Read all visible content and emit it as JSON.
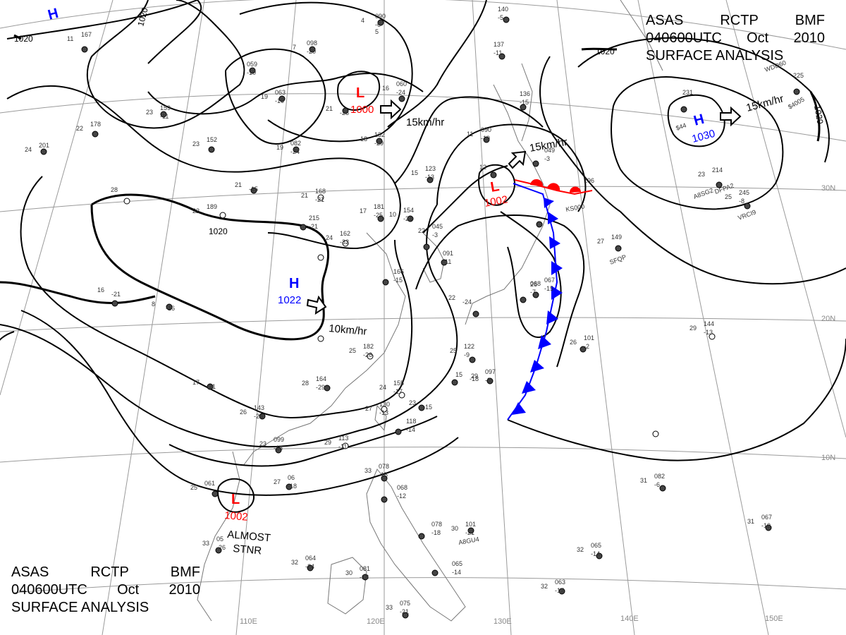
{
  "header": {
    "line1": [
      "ASAS",
      "RCTP",
      "BMF"
    ],
    "line2": [
      "040600UTC",
      "Oct",
      "2010"
    ],
    "line3": "SURFACE ANALYSIS"
  },
  "footer": {
    "line1": [
      "ASAS",
      "RCTP",
      "BMF"
    ],
    "line2": [
      "040600UTC",
      "Oct",
      "2010"
    ],
    "line3": "SURFACE ANALYSIS"
  },
  "colors": {
    "low": "#ff0000",
    "high": "#0000ff",
    "warm_front": "#ff0000",
    "cold_front": "#0000ff",
    "isobar": "#000000",
    "grid": "#888888"
  },
  "pressure_systems": [
    {
      "type": "H",
      "value": "",
      "color_key": "high"
    },
    {
      "type": "L",
      "value": "1000",
      "color_key": "low",
      "motion": "15km/hr"
    },
    {
      "type": "L",
      "value": "1002",
      "color_key": "low",
      "motion": "15km/hr"
    },
    {
      "type": "H",
      "value": "1030",
      "color_key": "high",
      "motion": "15km/hr"
    },
    {
      "type": "H",
      "value": "1022",
      "color_key": "high",
      "motion": "10km/hr"
    },
    {
      "type": "L",
      "value": "1002",
      "color_key": "low",
      "note": "ALMOST STNR"
    }
  ],
  "isobar_labels": [
    "1020",
    "1020",
    "1020",
    "1020"
  ],
  "longitude_labels": [
    "110E",
    "120E",
    "130E",
    "140E",
    "150E"
  ],
  "latitude_labels": [
    "30N",
    "20N",
    "10N"
  ],
  "stations": [
    {
      "id": "st1",
      "temp": "4",
      "pres": "090",
      "dp": "-6",
      "tend": "5"
    },
    {
      "id": "st2",
      "temp": "7",
      "pres": "098",
      "dp": "-20"
    },
    {
      "id": "st3",
      "temp": "",
      "pres": "059",
      "dp": "-10"
    },
    {
      "id": "st4",
      "temp": "19",
      "pres": "063",
      "dp": "-10"
    },
    {
      "id": "st5",
      "temp": "21",
      "pres": "",
      "dp": "-26"
    },
    {
      "id": "st6",
      "temp": "16",
      "pres": "060",
      "dp": "-24"
    },
    {
      "id": "st7",
      "temp": "11",
      "pres": "167",
      "dp": ""
    },
    {
      "id": "st8",
      "temp": "23",
      "pres": "159",
      "dp": "-11"
    },
    {
      "id": "st9",
      "temp": "22",
      "pres": "178",
      "dp": ""
    },
    {
      "id": "st10",
      "temp": "24",
      "pres": "201",
      "dp": ""
    },
    {
      "id": "st11",
      "temp": "23",
      "pres": "152",
      "dp": ""
    },
    {
      "id": "st12",
      "temp": "19",
      "pres": "082",
      "dp": "-24"
    },
    {
      "id": "st13",
      "temp": "18",
      "pres": "132",
      "dp": "-29"
    },
    {
      "id": "st14",
      "temp": "11",
      "pres": "090",
      "dp": "-19"
    },
    {
      "id": "st15",
      "temp": "28",
      "pres": "",
      "dp": ""
    },
    {
      "id": "st16",
      "temp": "21",
      "pres": "",
      "dp": "-15"
    },
    {
      "id": "st17",
      "temp": "21",
      "pres": "168",
      "dp": "-21"
    },
    {
      "id": "st18",
      "temp": "22",
      "pres": "189",
      "dp": ""
    },
    {
      "id": "st19",
      "temp": "",
      "pres": "215",
      "dp": "-21"
    },
    {
      "id": "st20",
      "temp": "24",
      "pres": "162",
      "dp": "-32"
    },
    {
      "id": "st21",
      "temp": "17",
      "pres": "181",
      "dp": "-25"
    },
    {
      "id": "st22",
      "temp": "10",
      "pres": "154",
      "dp": "-24"
    },
    {
      "id": "st23",
      "temp": "15",
      "pres": "123",
      "dp": "-13"
    },
    {
      "id": "st24",
      "temp": "22",
      "pres": "045",
      "dp": "-3"
    },
    {
      "id": "st25",
      "temp": "12",
      "pres": "",
      "dp": ""
    },
    {
      "id": "st26",
      "temp": "",
      "pres": "049",
      "dp": "-3"
    },
    {
      "id": "st27",
      "temp": "",
      "pres": "196",
      "dp": ""
    },
    {
      "id": "st28",
      "temp": "16",
      "pres": "",
      "dp": "-21"
    },
    {
      "id": "st29",
      "temp": "8",
      "pres": "",
      "dp": "-16"
    },
    {
      "id": "st30",
      "temp": "",
      "pres": "166",
      "dp": "-15"
    },
    {
      "id": "st31",
      "temp": "",
      "pres": "091",
      "dp": "-11"
    },
    {
      "id": "st32",
      "temp": "22",
      "pres": "",
      "dp": "-24"
    },
    {
      "id": "st33",
      "temp": "",
      "pres": "068",
      "dp": "-7"
    },
    {
      "id": "st34",
      "temp": "26",
      "pres": "067",
      "dp": "-15"
    },
    {
      "id": "st35",
      "temp": "25",
      "pres": "182",
      "dp": "-26"
    },
    {
      "id": "st36",
      "temp": "28",
      "pres": "164",
      "dp": "-29"
    },
    {
      "id": "st37",
      "temp": "25",
      "pres": "122",
      "dp": "-9"
    },
    {
      "id": "st38",
      "temp": "15",
      "pres": "",
      "dp": "-18"
    },
    {
      "id": "st39",
      "temp": "29",
      "pres": "097",
      "dp": "-3"
    },
    {
      "id": "st40",
      "temp": "24",
      "pres": "155",
      "dp": "-17"
    },
    {
      "id": "st41",
      "temp": "27",
      "pres": "130",
      "dp": "-13"
    },
    {
      "id": "st42",
      "temp": "23",
      "pres": "",
      "dp": "-15"
    },
    {
      "id": "st43",
      "temp": "",
      "pres": "118",
      "dp": "-14"
    },
    {
      "id": "st44",
      "temp": "26",
      "pres": "143",
      "dp": "-24"
    },
    {
      "id": "st45",
      "temp": "23",
      "pres": "099",
      "dp": "-16"
    },
    {
      "id": "st46",
      "temp": "29",
      "pres": "113",
      "dp": "-11"
    },
    {
      "id": "st47",
      "temp": "17",
      "pres": "",
      "dp": "-21"
    },
    {
      "id": "st48",
      "temp": "25",
      "pres": "061",
      "dp": ""
    },
    {
      "id": "st49",
      "temp": "27",
      "pres": "06",
      "dp": "-18"
    },
    {
      "id": "st50",
      "temp": "33",
      "pres": "078",
      "dp": "-15"
    },
    {
      "id": "st51",
      "temp": "",
      "pres": "068",
      "dp": "-12"
    },
    {
      "id": "st52",
      "temp": "30",
      "pres": "101",
      "dp": "-21"
    },
    {
      "id": "st53",
      "temp": "",
      "pres": "078",
      "dp": "-18"
    },
    {
      "id": "st54",
      "temp": "33",
      "pres": "05",
      "dp": "-26"
    },
    {
      "id": "st55",
      "temp": "32",
      "pres": "064",
      "dp": "-24"
    },
    {
      "id": "st56",
      "temp": "30",
      "pres": "081",
      "dp": "-18"
    },
    {
      "id": "st57",
      "temp": "",
      "pres": "065",
      "dp": "-14"
    },
    {
      "id": "st58",
      "temp": "32",
      "pres": "065",
      "dp": "-14"
    },
    {
      "id": "st59",
      "temp": "32",
      "pres": "063",
      "dp": "-17"
    },
    {
      "id": "st60",
      "temp": "33",
      "pres": "075",
      "dp": "-21"
    },
    {
      "id": "st61",
      "temp": "26",
      "pres": "101",
      "dp": "-2"
    },
    {
      "id": "st62",
      "temp": "29",
      "pres": "144",
      "dp": "-13"
    },
    {
      "id": "st63",
      "temp": "31",
      "pres": "082",
      "dp": "-6"
    },
    {
      "id": "st64",
      "temp": "31",
      "pres": "067",
      "dp": "-10"
    },
    {
      "id": "st65",
      "temp": "27",
      "pres": "149",
      "dp": ""
    },
    {
      "id": "st66",
      "temp": "23",
      "pres": "214",
      "dp": ""
    },
    {
      "id": "st67",
      "temp": "25",
      "pres": "245",
      "dp": "-8"
    },
    {
      "id": "st68",
      "temp": "",
      "pres": "225",
      "dp": ""
    },
    {
      "id": "st69",
      "temp": "",
      "pres": "137",
      "dp": "-11"
    },
    {
      "id": "st70",
      "temp": "",
      "pres": "136",
      "dp": "-15"
    },
    {
      "id": "st71",
      "temp": "",
      "pres": "140",
      "dp": "-5"
    },
    {
      "id": "st72",
      "temp": "",
      "pres": "231",
      "dp": ""
    }
  ],
  "ship_ids": [
    "WDD60",
    "A8SG2",
    "DFPA2",
    "VRCI9",
    "SFQP",
    "A8GU4",
    "KS000",
    "$4005",
    "$44"
  ]
}
